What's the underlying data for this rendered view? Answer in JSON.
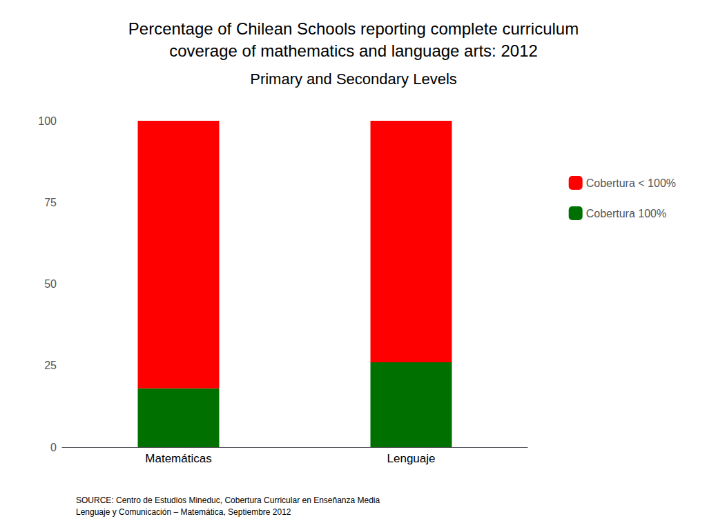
{
  "chart_data": {
    "type": "bar",
    "title": "Percentage of Chilean Schools reporting complete curriculum\ncoverage of mathematics and language arts: 2012",
    "subtitle": "Primary and Secondary Levels",
    "categories": [
      "Matemáticas",
      "Lenguaje"
    ],
    "series": [
      {
        "name": "Cobertura 100%",
        "color": "#007000",
        "values": [
          18,
          26
        ]
      },
      {
        "name": "Cobertura < 100%",
        "color": "#ff0000",
        "values": [
          82,
          74
        ]
      }
    ],
    "stacked": true,
    "ylim": [
      0,
      100
    ],
    "yticks": [
      0,
      25,
      50,
      75,
      100
    ],
    "grid": false,
    "legend": "right",
    "annotations": [
      "SOURCE: Centro de Estudios Mineduc, Cobertura Curricular en Enseñanza Media\nLenguaje y Comunicación – Matemática, Septiembre 2012"
    ]
  }
}
